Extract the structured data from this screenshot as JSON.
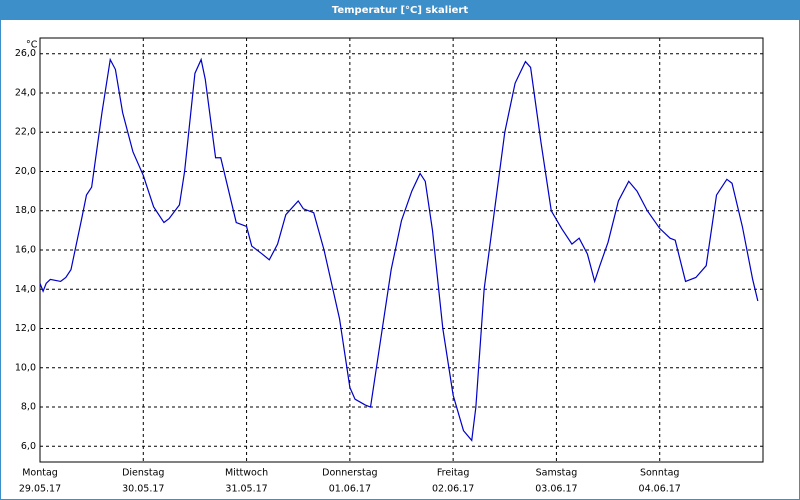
{
  "chart_data": {
    "type": "line",
    "title": "Temperatur [°C] skaliert",
    "y_unit": "°C",
    "x": [
      0,
      0.03,
      0.06,
      0.1,
      0.2,
      0.25,
      0.3,
      0.4,
      0.45,
      0.5,
      0.6,
      0.68,
      0.73,
      0.8,
      0.9,
      1.0,
      1.1,
      1.2,
      1.25,
      1.35,
      1.4,
      1.5,
      1.56,
      1.6,
      1.7,
      1.75,
      1.85,
      1.9,
      2.0,
      2.05,
      2.15,
      2.22,
      2.3,
      2.38,
      2.5,
      2.55,
      2.65,
      2.75,
      2.9,
      3.0,
      3.05,
      3.15,
      3.2,
      3.3,
      3.4,
      3.5,
      3.6,
      3.68,
      3.73,
      3.8,
      3.9,
      4.0,
      4.1,
      4.18,
      4.22,
      4.3,
      4.4,
      4.5,
      4.6,
      4.7,
      4.75,
      4.85,
      4.95,
      5.05,
      5.15,
      5.22,
      5.3,
      5.37,
      5.42,
      5.5,
      5.6,
      5.7,
      5.78,
      5.88,
      6.0,
      6.1,
      6.15,
      6.25,
      6.35,
      6.45,
      6.55,
      6.65,
      6.7,
      6.8,
      6.9,
      6.95
    ],
    "values": [
      14.3,
      13.9,
      14.3,
      14.5,
      14.4,
      14.6,
      15.0,
      17.5,
      18.8,
      19.2,
      23.0,
      25.7,
      25.2,
      23.0,
      21.0,
      19.8,
      18.2,
      17.4,
      17.6,
      18.3,
      20.0,
      25.0,
      25.7,
      24.7,
      20.7,
      20.7,
      18.5,
      17.4,
      17.2,
      16.2,
      15.8,
      15.5,
      16.3,
      17.8,
      18.5,
      18.1,
      17.9,
      16.0,
      12.5,
      9.0,
      8.4,
      8.1,
      8.0,
      11.5,
      15.0,
      17.5,
      19.0,
      19.9,
      19.5,
      17.0,
      12.0,
      8.6,
      6.8,
      6.3,
      8.0,
      14.0,
      18.0,
      22.0,
      24.5,
      25.6,
      25.3,
      21.5,
      18.0,
      17.1,
      16.3,
      16.6,
      15.8,
      14.4,
      15.2,
      16.4,
      18.5,
      19.5,
      19.0,
      18.0,
      17.1,
      16.6,
      16.5,
      14.4,
      14.6,
      15.2,
      18.8,
      19.6,
      19.4,
      17.2,
      14.5,
      13.4
    ],
    "color": "#0000c8",
    "xlim": [
      0,
      7
    ],
    "xticks": [
      {
        "value": 0,
        "label": "Montag"
      },
      {
        "value": 1,
        "label": "Dienstag"
      },
      {
        "value": 2,
        "label": "Mittwoch"
      },
      {
        "value": 3,
        "label": "Donnerstag"
      },
      {
        "value": 4,
        "label": "Freitag"
      },
      {
        "value": 5,
        "label": "Samstag"
      },
      {
        "value": 6,
        "label": "Sonntag"
      }
    ],
    "xtick_dates": [
      "29.05.17",
      "30.05.17",
      "31.05.17",
      "01.06.17",
      "02.06.17",
      "03.06.17",
      "04.06.17"
    ],
    "ylim": [
      5.2,
      26.8
    ],
    "yticks": [
      {
        "value": 6,
        "label": "6,0"
      },
      {
        "value": 8,
        "label": "8,0"
      },
      {
        "value": 10,
        "label": "10,0"
      },
      {
        "value": 12,
        "label": "12,0"
      },
      {
        "value": 14,
        "label": "14,0"
      },
      {
        "value": 16,
        "label": "16,0"
      },
      {
        "value": 18,
        "label": "18,0"
      },
      {
        "value": 20,
        "label": "20,0"
      },
      {
        "value": 22,
        "label": "22,0"
      },
      {
        "value": 24,
        "label": "24,0"
      },
      {
        "value": 26,
        "label": "26,0"
      }
    ],
    "grid": true
  }
}
